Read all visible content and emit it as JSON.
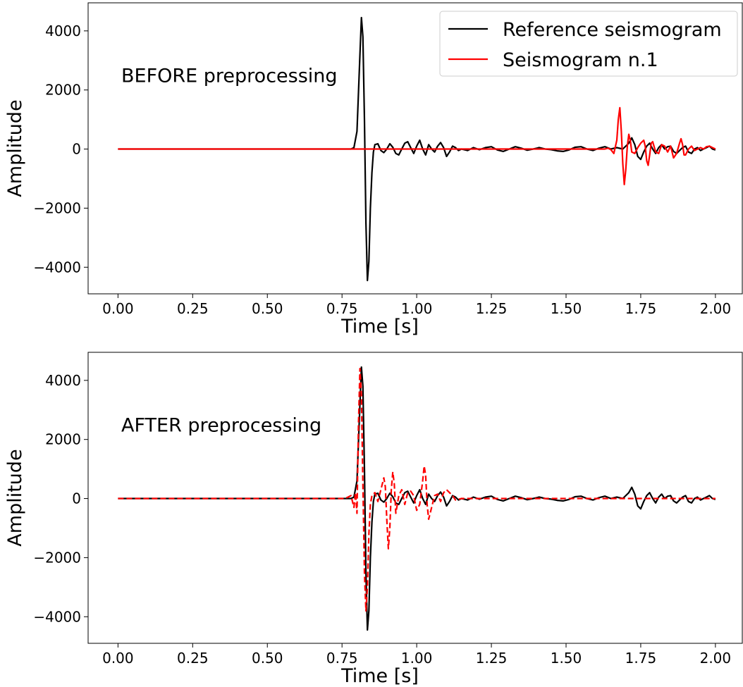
{
  "chart_data": [
    {
      "type": "line",
      "annotation": "BEFORE preprocessing",
      "xlabel": "Time [s]",
      "ylabel": "Amplitude",
      "xlim": [
        -0.1,
        2.09
      ],
      "ylim": [
        -4900,
        4950
      ],
      "x_ticks": [
        0.0,
        0.25,
        0.5,
        0.75,
        1.0,
        1.25,
        1.5,
        1.75,
        2.0
      ],
      "x_tick_labels": [
        "0.00",
        "0.25",
        "0.50",
        "0.75",
        "1.00",
        "1.25",
        "1.50",
        "1.75",
        "2.00"
      ],
      "y_ticks": [
        -4000,
        -2000,
        0,
        2000,
        4000
      ],
      "y_tick_labels": [
        "−4000",
        "−2000",
        "0",
        "2000",
        "4000"
      ],
      "legend": {
        "position": "top-right",
        "entries": [
          "Reference seismogram",
          "Seismogram n.1"
        ]
      },
      "grid": false,
      "series": [
        {
          "name": "Reference seismogram",
          "color": "#000000",
          "dash": "solid",
          "x": [
            0.0,
            0.5,
            0.78,
            0.79,
            0.8,
            0.81,
            0.815,
            0.82,
            0.825,
            0.83,
            0.835,
            0.84,
            0.845,
            0.85,
            0.855,
            0.86,
            0.87,
            0.88,
            0.89,
            0.9,
            0.91,
            0.92,
            0.93,
            0.94,
            0.95,
            0.96,
            0.97,
            0.98,
            0.99,
            1.0,
            1.01,
            1.02,
            1.03,
            1.04,
            1.05,
            1.06,
            1.07,
            1.08,
            1.09,
            1.1,
            1.11,
            1.12,
            1.13,
            1.14,
            1.15,
            1.17,
            1.19,
            1.21,
            1.23,
            1.25,
            1.27,
            1.29,
            1.31,
            1.33,
            1.35,
            1.37,
            1.39,
            1.41,
            1.43,
            1.45,
            1.47,
            1.49,
            1.51,
            1.53,
            1.55,
            1.57,
            1.59,
            1.61,
            1.63,
            1.65,
            1.67,
            1.69,
            1.7,
            1.71,
            1.72,
            1.73,
            1.74,
            1.75,
            1.76,
            1.77,
            1.78,
            1.79,
            1.8,
            1.81,
            1.82,
            1.83,
            1.84,
            1.85,
            1.86,
            1.87,
            1.88,
            1.89,
            1.9,
            1.91,
            1.92,
            1.93,
            1.94,
            1.95,
            1.96,
            1.97,
            1.98,
            1.99,
            2.0
          ],
          "y": [
            0,
            0,
            0,
            50,
            600,
            3200,
            4450,
            3800,
            1000,
            -2500,
            -4450,
            -3800,
            -2000,
            -800,
            -100,
            150,
            180,
            -50,
            -120,
            0,
            180,
            60,
            -150,
            -200,
            0,
            200,
            250,
            50,
            -150,
            100,
            300,
            0,
            -200,
            150,
            0,
            -100,
            100,
            220,
            50,
            -250,
            -100,
            100,
            50,
            -50,
            0,
            -50,
            50,
            -20,
            50,
            80,
            -30,
            -80,
            0,
            80,
            30,
            -40,
            0,
            50,
            0,
            -20,
            -60,
            -80,
            -30,
            60,
            80,
            0,
            -50,
            30,
            80,
            0,
            50,
            0,
            100,
            200,
            380,
            150,
            -250,
            -350,
            -100,
            100,
            200,
            0,
            -150,
            50,
            150,
            0,
            80,
            100,
            -80,
            -150,
            -50,
            50,
            100,
            -100,
            -150,
            0,
            50,
            -50,
            0,
            50,
            100,
            0,
            -30
          ]
        },
        {
          "name": "Seismogram n.1",
          "color": "#ff0000",
          "dash": "solid",
          "x": [
            0.0,
            1.0,
            1.5,
            1.6,
            1.63,
            1.64,
            1.65,
            1.66,
            1.67,
            1.675,
            1.68,
            1.685,
            1.69,
            1.695,
            1.7,
            1.705,
            1.71,
            1.715,
            1.72,
            1.73,
            1.74,
            1.75,
            1.76,
            1.765,
            1.77,
            1.775,
            1.78,
            1.785,
            1.79,
            1.8,
            1.81,
            1.82,
            1.83,
            1.84,
            1.85,
            1.86,
            1.87,
            1.88,
            1.885,
            1.89,
            1.895,
            1.9,
            1.91,
            1.92,
            1.93,
            1.94,
            1.95,
            1.96,
            1.97,
            1.98,
            1.99,
            2.0
          ],
          "y": [
            0,
            0,
            0,
            0,
            0,
            30,
            -20,
            -150,
            300,
            1000,
            1400,
            600,
            -500,
            -1200,
            -700,
            100,
            500,
            300,
            -100,
            -150,
            50,
            200,
            300,
            100,
            -400,
            -550,
            -200,
            200,
            250,
            -100,
            -150,
            150,
            100,
            -100,
            100,
            -300,
            -150,
            200,
            350,
            150,
            -200,
            -200,
            0,
            100,
            -50,
            0,
            50,
            0,
            80,
            100,
            50,
            0
          ]
        }
      ]
    },
    {
      "type": "line",
      "annotation": "AFTER preprocessing",
      "xlabel": "Time [s]",
      "ylabel": "Amplitude",
      "xlim": [
        -0.1,
        2.09
      ],
      "ylim": [
        -4900,
        4950
      ],
      "x_ticks": [
        0.0,
        0.25,
        0.5,
        0.75,
        1.0,
        1.25,
        1.5,
        1.75,
        2.0
      ],
      "x_tick_labels": [
        "0.00",
        "0.25",
        "0.50",
        "0.75",
        "1.00",
        "1.25",
        "1.50",
        "1.75",
        "2.00"
      ],
      "y_ticks": [
        -4000,
        -2000,
        0,
        2000,
        4000
      ],
      "y_tick_labels": [
        "−4000",
        "−2000",
        "0",
        "2000",
        "4000"
      ],
      "grid": false,
      "series": [
        {
          "name": "Reference seismogram",
          "color": "#000000",
          "dash": "solid",
          "x": [
            0.0,
            0.5,
            0.78,
            0.79,
            0.8,
            0.81,
            0.815,
            0.82,
            0.825,
            0.83,
            0.835,
            0.84,
            0.845,
            0.85,
            0.855,
            0.86,
            0.87,
            0.88,
            0.89,
            0.9,
            0.91,
            0.92,
            0.93,
            0.94,
            0.95,
            0.96,
            0.97,
            0.98,
            0.99,
            1.0,
            1.01,
            1.02,
            1.03,
            1.04,
            1.05,
            1.06,
            1.07,
            1.08,
            1.09,
            1.1,
            1.11,
            1.12,
            1.13,
            1.14,
            1.15,
            1.17,
            1.19,
            1.21,
            1.23,
            1.25,
            1.27,
            1.29,
            1.31,
            1.33,
            1.35,
            1.37,
            1.39,
            1.41,
            1.43,
            1.45,
            1.47,
            1.49,
            1.51,
            1.53,
            1.55,
            1.57,
            1.59,
            1.61,
            1.63,
            1.65,
            1.67,
            1.69,
            1.7,
            1.71,
            1.72,
            1.73,
            1.74,
            1.75,
            1.76,
            1.77,
            1.78,
            1.79,
            1.8,
            1.81,
            1.82,
            1.83,
            1.84,
            1.85,
            1.86,
            1.87,
            1.88,
            1.89,
            1.9,
            1.91,
            1.92,
            1.93,
            1.94,
            1.95,
            1.96,
            1.97,
            1.98,
            1.99,
            2.0
          ],
          "y": [
            0,
            0,
            0,
            50,
            600,
            3200,
            4450,
            3800,
            1000,
            -2500,
            -4450,
            -3800,
            -2000,
            -800,
            -100,
            150,
            180,
            -50,
            -120,
            0,
            180,
            60,
            -150,
            -200,
            0,
            200,
            250,
            50,
            -150,
            100,
            300,
            0,
            -200,
            150,
            0,
            -100,
            100,
            220,
            50,
            -250,
            -100,
            100,
            50,
            -50,
            0,
            -50,
            50,
            -20,
            50,
            80,
            -30,
            -80,
            0,
            80,
            30,
            -40,
            0,
            50,
            0,
            -20,
            -60,
            -80,
            -30,
            60,
            80,
            0,
            -50,
            30,
            80,
            0,
            50,
            0,
            100,
            200,
            380,
            150,
            -250,
            -350,
            -100,
            100,
            200,
            0,
            -150,
            50,
            150,
            0,
            80,
            100,
            -80,
            -150,
            -50,
            50,
            100,
            -100,
            -150,
            0,
            50,
            -50,
            0,
            50,
            100,
            0,
            -30
          ]
        },
        {
          "name": "Seismogram n.1",
          "color": "#ff0000",
          "dash": "dashed",
          "x": [
            0.0,
            0.7,
            0.76,
            0.77,
            0.78,
            0.785,
            0.79,
            0.795,
            0.8,
            0.805,
            0.81,
            0.815,
            0.82,
            0.825,
            0.83,
            0.835,
            0.84,
            0.845,
            0.85,
            0.86,
            0.87,
            0.88,
            0.89,
            0.895,
            0.9,
            0.905,
            0.91,
            0.915,
            0.92,
            0.925,
            0.93,
            0.94,
            0.95,
            0.96,
            0.97,
            0.98,
            0.99,
            1.0,
            1.01,
            1.02,
            1.025,
            1.03,
            1.035,
            1.04,
            1.05,
            1.06,
            1.07,
            1.08,
            1.09,
            1.1,
            1.11,
            1.12,
            1.13,
            1.15,
            1.2,
            1.3,
            1.5,
            2.0
          ],
          "y": [
            0,
            0,
            0,
            50,
            100,
            -100,
            -300,
            200,
            -500,
            2500,
            4400,
            3500,
            500,
            -2500,
            -3800,
            -3000,
            -1200,
            -200,
            100,
            200,
            -100,
            300,
            700,
            400,
            -700,
            -1700,
            -1000,
            300,
            900,
            500,
            -500,
            100,
            300,
            -200,
            200,
            250,
            100,
            -400,
            -200,
            600,
            1100,
            800,
            -200,
            -700,
            -300,
            100,
            150,
            -100,
            200,
            300,
            200,
            100,
            -50,
            0,
            0,
            0,
            0,
            0
          ]
        }
      ]
    }
  ]
}
